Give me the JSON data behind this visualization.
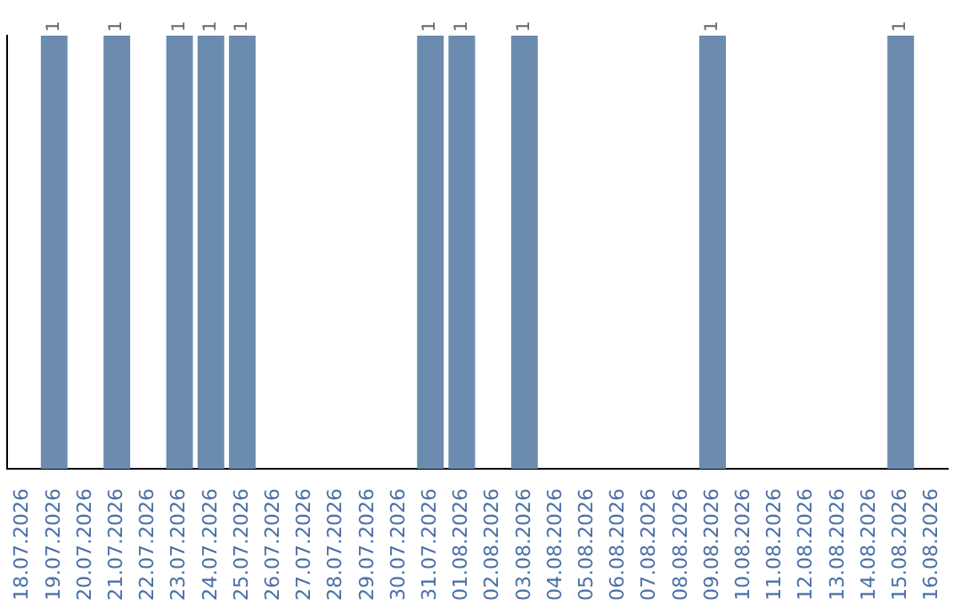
{
  "chart_data": {
    "type": "bar",
    "categories": [
      "18.07.2026",
      "19.07.2026",
      "20.07.2026",
      "21.07.2026",
      "22.07.2026",
      "23.07.2026",
      "24.07.2026",
      "25.07.2026",
      "26.07.2026",
      "27.07.2026",
      "28.07.2026",
      "29.07.2026",
      "30.07.2026",
      "31.07.2026",
      "01.08.2026",
      "02.08.2026",
      "03.08.2026",
      "04.08.2026",
      "05.08.2026",
      "06.08.2026",
      "07.08.2026",
      "08.08.2026",
      "09.08.2026",
      "10.08.2026",
      "11.08.2026",
      "12.08.2026",
      "13.08.2026",
      "14.08.2026",
      "15.08.2026",
      "16.08.2026"
    ],
    "values": [
      0,
      1,
      0,
      1,
      0,
      1,
      1,
      1,
      0,
      0,
      0,
      0,
      0,
      1,
      1,
      0,
      1,
      0,
      0,
      0,
      0,
      0,
      1,
      0,
      0,
      0,
      0,
      0,
      1,
      0
    ],
    "value_labels": [
      null,
      "1",
      null,
      "1",
      null,
      "1",
      "1",
      "1",
      null,
      null,
      null,
      null,
      null,
      "1",
      "1",
      null,
      "1",
      null,
      null,
      null,
      null,
      null,
      "1",
      null,
      null,
      null,
      null,
      null,
      "1",
      null
    ],
    "color": "#6b8cae",
    "ylim": [
      0,
      1
    ],
    "tick_labels": "x",
    "grid": false,
    "legend": false
  }
}
